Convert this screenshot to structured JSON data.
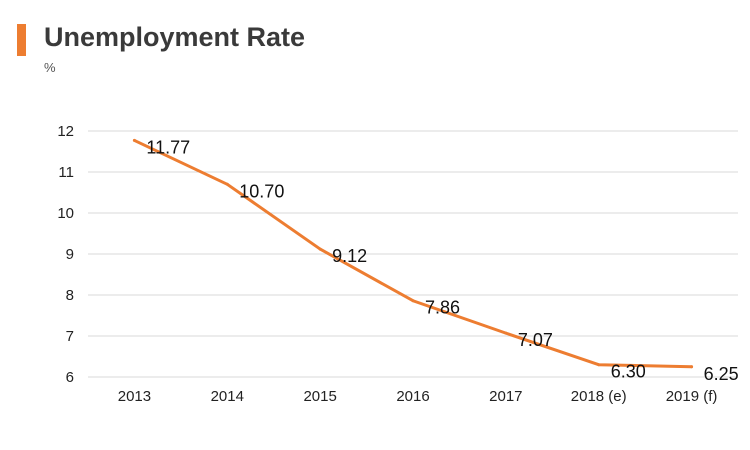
{
  "chart_data": {
    "type": "line",
    "title": "Unemployment Rate",
    "unit": "%",
    "categories": [
      "2013",
      "2014",
      "2015",
      "2016",
      "2017",
      "2018 (e)",
      "2019 (f)"
    ],
    "values": [
      11.77,
      10.7,
      9.12,
      7.86,
      7.07,
      6.3,
      6.25
    ],
    "data_labels": [
      "11.77",
      "10.70",
      "9.12",
      "7.86",
      "7.07",
      "6.30",
      "6.25"
    ],
    "yticks": [
      "6",
      "7",
      "8",
      "9",
      "10",
      "11",
      "12"
    ],
    "ylim": [
      6,
      12
    ],
    "grid": true,
    "legend": "none"
  },
  "colors": {
    "line": "#ED7D31",
    "accent": "#ED7D31",
    "grid": "#D9D9D9"
  }
}
